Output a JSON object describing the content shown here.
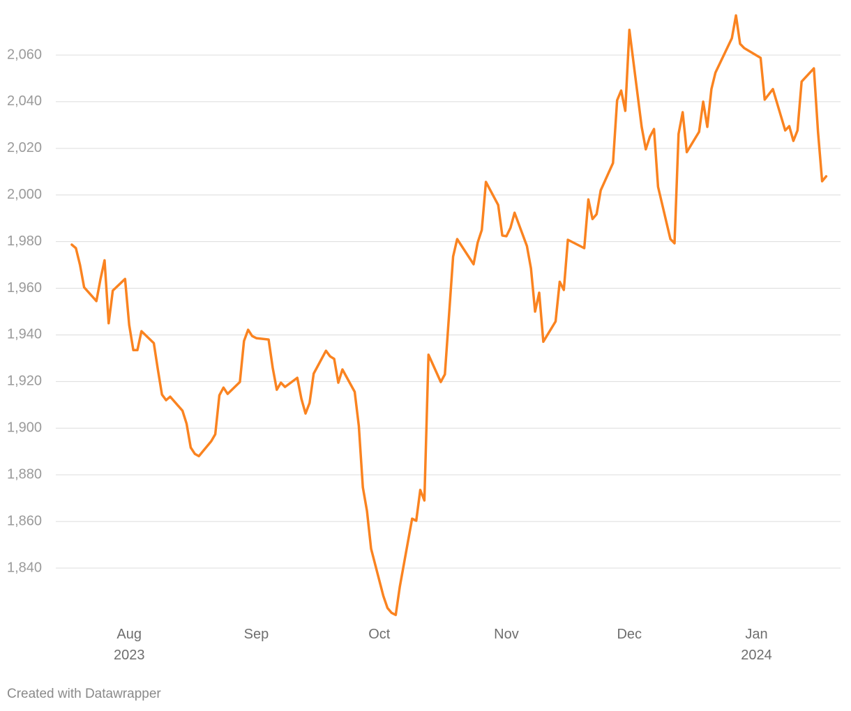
{
  "chart_data": {
    "type": "line",
    "x": [
      199,
      200,
      201,
      202,
      205,
      206,
      207,
      208,
      209,
      212,
      213,
      214,
      215,
      216,
      219,
      220,
      221,
      222,
      223,
      226,
      227,
      228,
      229,
      230,
      233,
      234,
      235,
      236,
      237,
      240,
      241,
      242,
      243,
      244,
      247,
      248,
      249,
      250,
      251,
      254,
      255,
      256,
      257,
      258,
      261,
      262,
      263,
      264,
      265,
      268,
      269,
      270,
      271,
      272,
      275,
      276,
      277,
      278,
      279,
      282,
      283,
      284,
      285,
      286,
      289,
      290,
      292,
      293,
      297,
      298,
      299,
      300,
      303,
      304,
      305,
      306,
      307,
      310,
      311,
      312,
      313,
      314,
      317,
      318,
      319,
      320,
      324,
      325,
      326,
      327,
      328,
      331,
      332,
      333,
      334,
      335,
      338,
      339,
      340,
      341,
      342,
      345,
      346,
      347,
      348,
      349,
      352,
      353,
      354,
      355,
      356,
      360,
      361,
      362,
      363,
      367,
      368,
      370,
      373,
      374,
      375,
      376,
      377,
      380,
      381,
      382,
      383
    ],
    "series": [
      {
        "color": "#fa8320",
        "values": [
          1978.7,
          1977.2,
          1970,
          1960.4,
          1954.5,
          1964,
          1972,
          1945,
          1959,
          1964,
          1944.3,
          1933.5,
          1933.5,
          1941.6,
          1936.5,
          1925,
          1914.4,
          1912,
          1913.5,
          1907.5,
          1901.9,
          1891.7,
          1889,
          1888,
          1894.4,
          1897.4,
          1914.1,
          1917.4,
          1914.7,
          1919.8,
          1937.4,
          1942.2,
          1939.5,
          1938.6,
          1938,
          1926,
          1916.5,
          1919.5,
          1917.7,
          1921.6,
          1912.6,
          1906.3,
          1910.8,
          1923.4,
          1933.2,
          1930.8,
          1929.7,
          1919.5,
          1925.2,
          1915.6,
          1901,
          1874.6,
          1864.5,
          1848.3,
          1828,
          1822.9,
          1820.8,
          1819.9,
          1831.9,
          1861.2,
          1860.3,
          1873.5,
          1869,
          1931.5,
          1919.8,
          1923.1,
          1973.6,
          1981.1,
          1970.3,
          1979.6,
          1985,
          2005.6,
          1995.7,
          1982.6,
          1982.3,
          1985.9,
          1992.4,
          1978.1,
          1968.5,
          1950,
          1958.1,
          1937.1,
          1945.8,
          1962.8,
          1959.3,
          1980.8,
          1977.2,
          1998.1,
          1989.7,
          1991.8,
          2002,
          2013.7,
          2040.6,
          2044.8,
          2036.1,
          2070.8,
          2029.2,
          2019.6,
          2025,
          2028.3,
          2003.5,
          1981.1,
          1979.3,
          2026.2,
          2035.5,
          2018.4,
          2027.1,
          2040,
          2029.2,
          2045.4,
          2052.5,
          2067.2,
          2077,
          2064.8,
          2063,
          2058.8,
          2040.9,
          2045.4,
          2027.7,
          2029.5,
          2023.2,
          2027.7,
          2048.6,
          2054.3,
          2027.1,
          2005.9,
          2008
        ]
      }
    ],
    "xlim": [
      195.1,
      386.5
    ],
    "xticks": [
      {
        "value": 213,
        "label": "Aug\n2023"
      },
      {
        "value": 244,
        "label": "Sep"
      },
      {
        "value": 274,
        "label": "Oct"
      },
      {
        "value": 305,
        "label": "Nov"
      },
      {
        "value": 335,
        "label": "Dec"
      },
      {
        "value": 366,
        "label": "Jan\n2024"
      }
    ],
    "ylim": [
      1815,
      2080
    ],
    "yticks": [
      {
        "value": 1840,
        "label": "1,840"
      },
      {
        "value": 1860,
        "label": "1,860"
      },
      {
        "value": 1880,
        "label": "1,880"
      },
      {
        "value": 1900,
        "label": "1,900"
      },
      {
        "value": 1920,
        "label": "1,920"
      },
      {
        "value": 1940,
        "label": "1,940"
      },
      {
        "value": 1960,
        "label": "1,960"
      },
      {
        "value": 1980,
        "label": "1,980"
      },
      {
        "value": 2000,
        "label": "2,000"
      },
      {
        "value": 2020,
        "label": "2,020"
      },
      {
        "value": 2040,
        "label": "2,040"
      },
      {
        "value": 2060,
        "label": "2,060"
      }
    ],
    "grid": true,
    "credit": "Created with Datawrapper"
  }
}
